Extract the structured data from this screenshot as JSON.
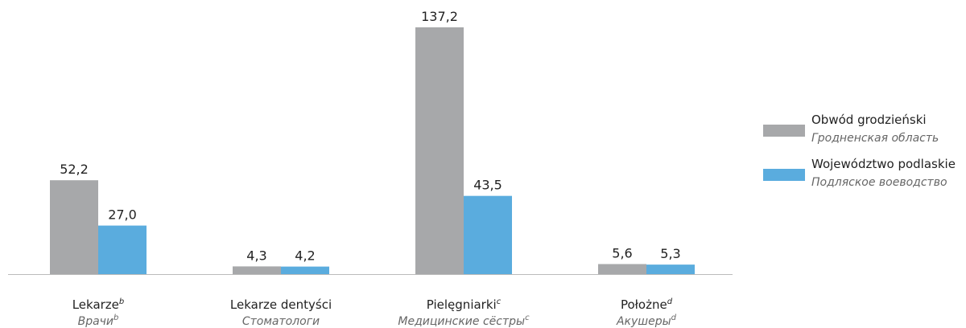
{
  "chart_data": {
    "type": "bar",
    "categories": [
      "Lekarze",
      "Lekarze dentyści",
      "Pielęgniarki",
      "Położne"
    ],
    "category_notes": [
      "b",
      null,
      "c",
      "d"
    ],
    "categories_ru": [
      "Врачи",
      "Стоматологи",
      "Медицинские сёстры",
      "Акушеры"
    ],
    "series": [
      {
        "name": "Obwód grodzieński",
        "name_ru": "Гродненская область",
        "color": "#a7a8aa",
        "values": [
          52.2,
          4.3,
          137.2,
          5.6
        ],
        "value_labels": [
          "52,2",
          "4,3",
          "137,2",
          "5,6"
        ]
      },
      {
        "name": "Województwo podlaskie",
        "name_ru": "Подляское воеводство",
        "color": "#5aacde",
        "values": [
          27.0,
          4.2,
          43.5,
          5.3
        ],
        "value_labels": [
          "27,0",
          "4,2",
          "43,5",
          "5,3"
        ]
      }
    ]
  }
}
